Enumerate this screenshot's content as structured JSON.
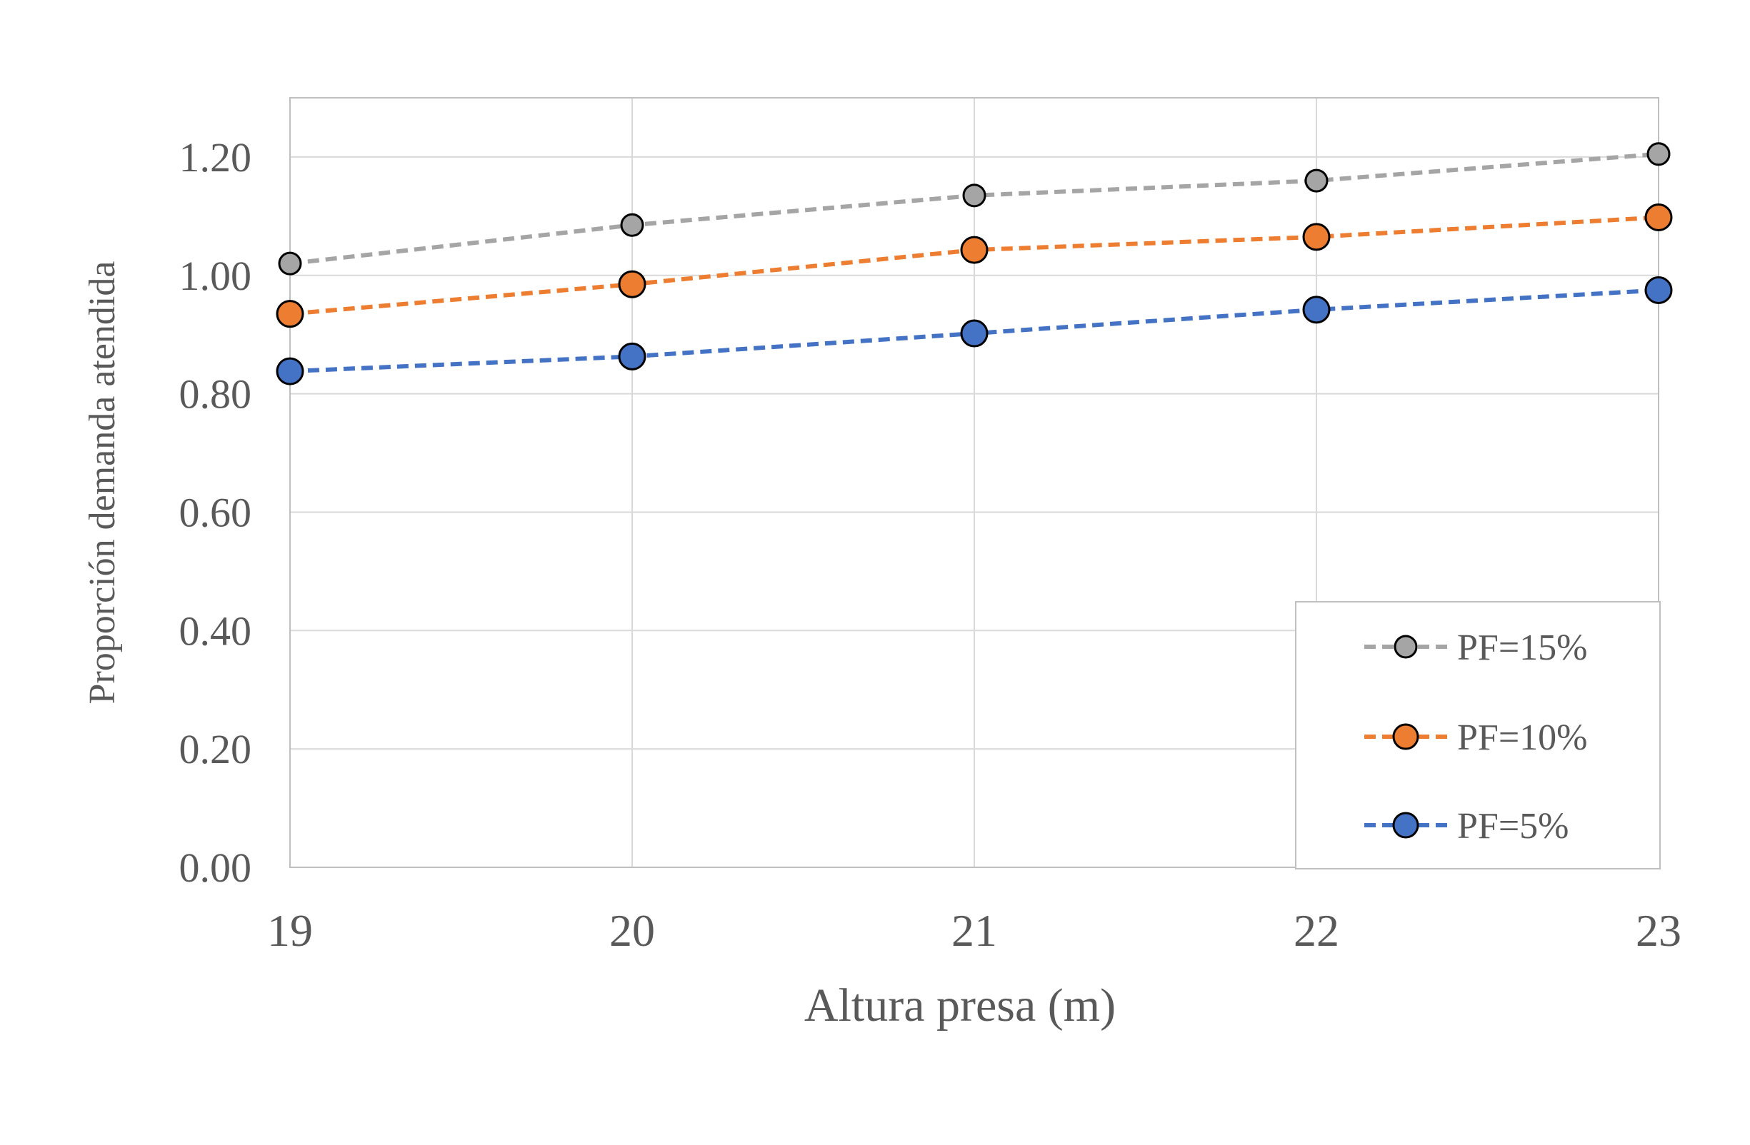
{
  "chart_data": {
    "type": "line",
    "title": "",
    "xlabel": "Altura presa (m)",
    "ylabel": "Proporción demanda atendida",
    "x": [
      19,
      20,
      21,
      22,
      23
    ],
    "x_tick_labels": [
      "19",
      "20",
      "21",
      "22",
      "23"
    ],
    "xlim": [
      19,
      23
    ],
    "ylim": [
      0,
      1.3
    ],
    "y_ticks": [
      0,
      0.2,
      0.4,
      0.6,
      0.8,
      1.0,
      1.2
    ],
    "y_tick_labels": [
      "0.00",
      "0.20",
      "0.40",
      "0.60",
      "0.80",
      "1.00",
      "1.20"
    ],
    "grid": true,
    "legend_position": "bottom-right",
    "series": [
      {
        "name": "PF=15%",
        "color": "#A5A5A5",
        "values": [
          1.02,
          1.085,
          1.135,
          1.16,
          1.205
        ]
      },
      {
        "name": "PF=10%",
        "color": "#ED7D31",
        "values": [
          0.935,
          0.985,
          1.043,
          1.065,
          1.098
        ]
      },
      {
        "name": "PF=5%",
        "color": "#4472C4",
        "values": [
          0.838,
          0.863,
          0.902,
          0.942,
          0.975
        ]
      }
    ]
  }
}
